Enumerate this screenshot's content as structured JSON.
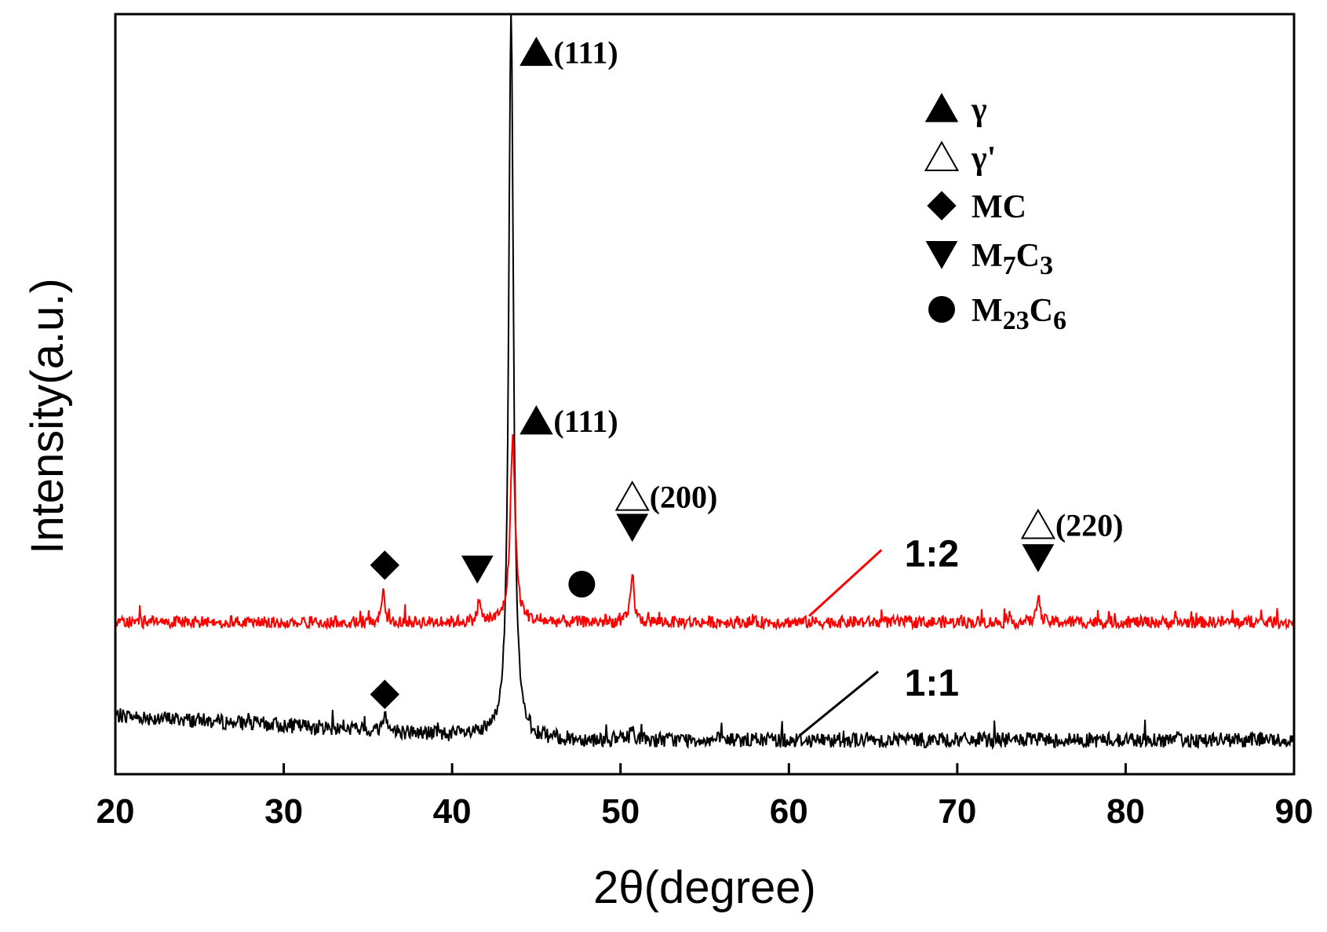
{
  "chart_data": {
    "type": "line",
    "title": "",
    "xlabel": "2θ(degree)",
    "ylabel": "Intensity(a.u.)",
    "xlim": [
      20,
      90
    ],
    "ylim": [
      0,
      100
    ],
    "xticks": [
      "20",
      "30",
      "40",
      "50",
      "60",
      "70",
      "80",
      "90"
    ],
    "yticks": [],
    "grid": false,
    "series": [
      {
        "name": "1:1",
        "color": "#000000",
        "baseline": 4.5,
        "noise": 1.0,
        "peaks": [
          {
            "x": 36.0,
            "height": 2.5,
            "width": 0.12
          },
          {
            "x": 43.5,
            "height": 96.0,
            "width": 0.17
          },
          {
            "x": 50.7,
            "height": 1.5,
            "width": 0.15
          }
        ],
        "marker_at": 86.5
      },
      {
        "name": "1:2",
        "color": "#ff0000",
        "baseline": 20.0,
        "noise": 0.8,
        "peaks": [
          {
            "x": 35.9,
            "height": 4.5,
            "width": 0.1
          },
          {
            "x": 41.6,
            "height": 3.0,
            "width": 0.1
          },
          {
            "x": 43.6,
            "height": 24.0,
            "width": 0.18
          },
          {
            "x": 50.7,
            "height": 6.5,
            "width": 0.12
          },
          {
            "x": 74.8,
            "height": 4.0,
            "width": 0.1
          }
        ],
        "marker_at": 88.0
      }
    ],
    "series_labels": [
      {
        "text": "1:2",
        "x": 67.8,
        "y": 29.0,
        "line_from": [
          61.2,
          20.8
        ],
        "line_to": [
          65.5,
          29.5
        ]
      },
      {
        "text": "1:1",
        "x": 67.8,
        "y": 12.0,
        "line_from": [
          60.7,
          5.2
        ],
        "line_to": [
          65.3,
          13.5
        ]
      }
    ],
    "legend": {
      "position": "top-right",
      "entries": [
        {
          "symbol": "filled-triangle-up",
          "label": "γ"
        },
        {
          "symbol": "open-triangle-up",
          "label": "γ'"
        },
        {
          "symbol": "filled-diamond",
          "label": "MC"
        },
        {
          "symbol": "filled-triangle-down",
          "label": "M",
          "sub1": "7",
          "mid": "C",
          "sub2": "3"
        },
        {
          "symbol": "filled-circle",
          "label": "M",
          "sub1": "23",
          "mid": "C",
          "sub2": "6"
        }
      ]
    },
    "annotations": [
      {
        "symbol": "filled-triangle-up",
        "x": 45.0,
        "y": 95.0,
        "text": "(111)"
      },
      {
        "symbol": "filled-triangle-up",
        "x": 45.0,
        "y": 46.5,
        "text": "(111)"
      },
      {
        "symbol": "open-triangle-up",
        "x": 50.7,
        "y": 36.5,
        "text": "(200)"
      },
      {
        "symbol": "filled-triangle-down",
        "x": 50.7,
        "y": 32.5,
        "text": ""
      },
      {
        "symbol": "open-triangle-up",
        "x": 74.8,
        "y": 32.8,
        "text": "(220)"
      },
      {
        "symbol": "filled-triangle-down",
        "x": 74.8,
        "y": 28.5,
        "text": ""
      },
      {
        "symbol": "filled-diamond",
        "x": 36.0,
        "y": 27.5,
        "text": ""
      },
      {
        "symbol": "filled-triangle-down",
        "x": 41.5,
        "y": 27.0,
        "text": ""
      },
      {
        "symbol": "filled-circle",
        "x": 47.7,
        "y": 25.0,
        "text": ""
      },
      {
        "symbol": "filled-diamond",
        "x": 36.0,
        "y": 10.5,
        "text": ""
      }
    ]
  }
}
